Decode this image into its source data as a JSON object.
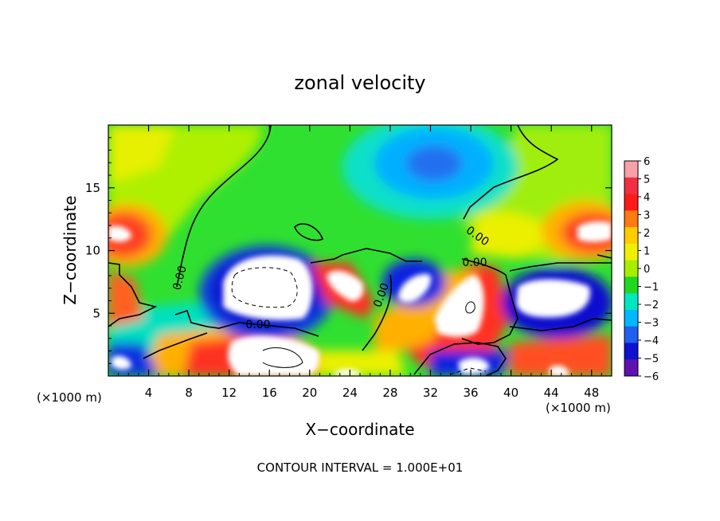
{
  "chart_data": {
    "type": "heatmap",
    "title": "zonal velocity",
    "xlabel": "X−coordinate",
    "ylabel": "Z−coordinate",
    "x_unit_left": "(×1000 m)",
    "x_unit_right": "(×1000 m)",
    "footer": "CONTOUR INTERVAL = 1.000E+01",
    "xlim": [
      0,
      50
    ],
    "ylim": [
      0,
      20
    ],
    "x_ticks": [
      4,
      8,
      12,
      16,
      20,
      24,
      28,
      32,
      36,
      40,
      44,
      48
    ],
    "y_ticks": [
      5,
      10,
      15
    ],
    "colorbar": {
      "levels": [
        6,
        5,
        4,
        3,
        2,
        1,
        0,
        -1,
        -2,
        -3,
        -4,
        -5,
        -6
      ],
      "labels": [
        "6",
        "5",
        "4",
        "3",
        "2",
        "1",
        "0",
        "−1",
        "−2",
        "−3",
        "−4",
        "−5",
        "−6"
      ],
      "colors": [
        "#f7a0a8",
        "#f03040",
        "#ff1a1a",
        "#ff7a10",
        "#ffcc00",
        "#eef000",
        "#a8ee00",
        "#20d820",
        "#00e8c0",
        "#00b8ff",
        "#2060f0",
        "#1010d0",
        "#6010b0"
      ]
    },
    "contour_labels": [
      "0.00",
      "0.00",
      "0.00",
      "0.00",
      "0.00"
    ],
    "grid": false,
    "legend": "right"
  }
}
